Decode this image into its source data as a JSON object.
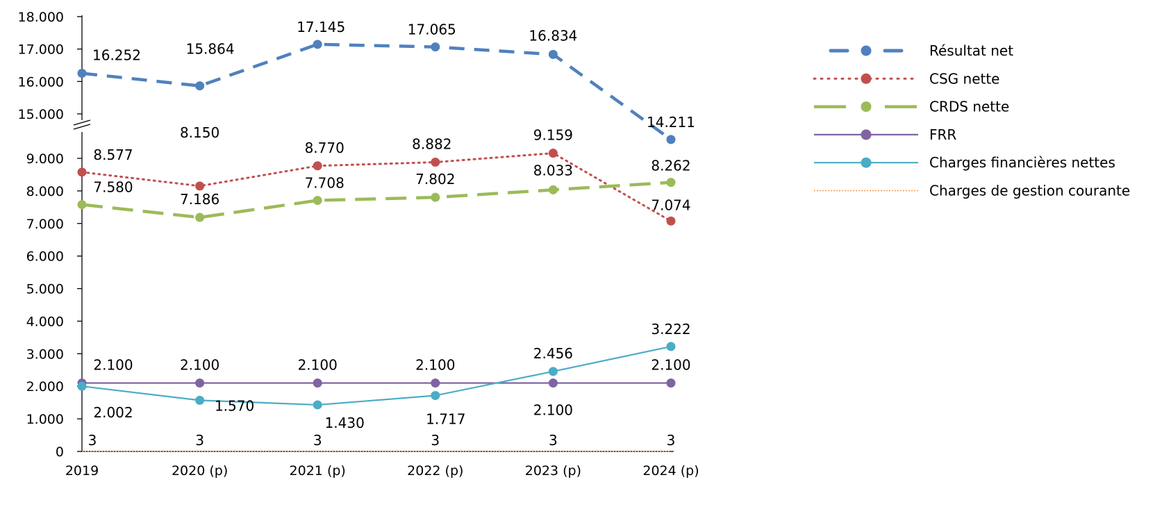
{
  "chart_data": {
    "type": "line",
    "title": "",
    "xlabel": "",
    "ylabel": "",
    "categories": [
      "2019",
      "2020 (p)",
      "2021 (p)",
      "2022 (p)",
      "2023 (p)",
      "2024 (p)"
    ],
    "y_axis": {
      "broken": true,
      "lower_segment": {
        "range": [
          0,
          9000
        ],
        "ticks": [
          "0",
          "1.000",
          "2.000",
          "3.000",
          "4.000",
          "5.000",
          "6.000",
          "7.000",
          "8.000",
          "9.000"
        ]
      },
      "upper_segment": {
        "range": [
          15000,
          18000
        ],
        "ticks": [
          "15.000",
          "16.000",
          "17.000",
          "18.000"
        ]
      }
    },
    "grid": false,
    "legend_position": "right",
    "series": [
      {
        "name": "Résultat net",
        "values": [
          16252,
          15864,
          17145,
          17065,
          16834,
          14211
        ],
        "labels": [
          "16.252",
          "15.864",
          "17.145",
          "17.065",
          "16.834",
          "14.211"
        ],
        "color": "#4f81bd",
        "style": "dashed",
        "marker": true
      },
      {
        "name": "CSG nette",
        "values": [
          8577,
          8150,
          8770,
          8882,
          9159,
          7074
        ],
        "labels": [
          "8.577",
          "8.150",
          "8.770",
          "8.882",
          "9.159",
          "7.074"
        ],
        "color": "#c0504d",
        "style": "dotted",
        "marker": true
      },
      {
        "name": "CRDS nette",
        "values": [
          7580,
          7186,
          7708,
          7802,
          8033,
          8262
        ],
        "labels": [
          "7.580",
          "7.186",
          "7.708",
          "7.802",
          "8.033",
          "8.262"
        ],
        "color": "#9bbb59",
        "style": "long-dashed",
        "marker": true
      },
      {
        "name": "FRR",
        "values": [
          2100,
          2100,
          2100,
          2100,
          2100,
          2100
        ],
        "labels": [
          "2.100",
          "2.100",
          "2.100",
          "2.100",
          "2.100",
          "2.100"
        ],
        "color": "#8064a2",
        "style": "solid",
        "marker": true
      },
      {
        "name": "Charges financières nettes",
        "values": [
          2002,
          1570,
          1430,
          1717,
          2456,
          3222
        ],
        "labels": [
          "2.002",
          "1.570",
          "1.430",
          "1.717",
          "2.456",
          "3.222"
        ],
        "color": "#4bacc6",
        "style": "solid",
        "marker": true
      },
      {
        "name": "Charges de gestion courante",
        "values": [
          3,
          3,
          3,
          3,
          3,
          3
        ],
        "labels": [
          "3",
          "3",
          "3",
          "3",
          "3",
          "3"
        ],
        "color": "#f79646",
        "style": "dotted",
        "marker": false
      }
    ]
  }
}
